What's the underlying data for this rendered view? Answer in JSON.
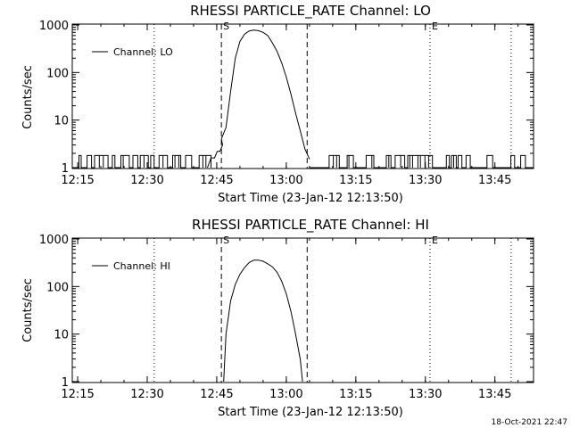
{
  "footer_date": "18-Oct-2021 22:47",
  "chart_data": [
    {
      "type": "line",
      "title": "RHESSI PARTICLE_RATE Channel: LO",
      "xlabel": "Start Time (23-Jan-12 12:13:50)",
      "ylabel": "Counts/sec",
      "yscale": "log",
      "xlim": [
        "12:13:50",
        "13:53:20"
      ],
      "ylim": [
        1,
        1000
      ],
      "x_ticks": [
        "12:15",
        "12:30",
        "12:45",
        "13:00",
        "13:15",
        "13:30",
        "13:45"
      ],
      "y_ticks": [
        "1",
        "10",
        "100",
        "1000"
      ],
      "legend": {
        "label": "Channel: LO",
        "position": "top-left"
      },
      "markers": [
        {
          "label": "S",
          "time": "12:46:00",
          "style": "dashed"
        },
        {
          "label": "",
          "time": "13:04:30",
          "style": "dashed"
        },
        {
          "label": "E",
          "time": "13:31:00",
          "style": "dotted"
        },
        {
          "label": "",
          "time": "12:31:30",
          "style": "dotted"
        },
        {
          "label": "",
          "time": "13:48:30",
          "style": "dotted"
        }
      ],
      "series": [
        {
          "name": "Channel: LO",
          "x": [
            "12:46:00",
            "12:47:00",
            "12:48:00",
            "12:49:00",
            "12:50:00",
            "12:51:00",
            "12:52:00",
            "12:53:00",
            "12:54:00",
            "12:55:00",
            "12:56:00",
            "12:57:00",
            "12:58:00",
            "12:59:00",
            "13:00:00",
            "13:01:00",
            "13:02:00",
            "13:03:00",
            "13:04:00",
            "13:05:00"
          ],
          "y": [
            4,
            7,
            40,
            200,
            450,
            640,
            750,
            780,
            760,
            700,
            600,
            420,
            280,
            160,
            80,
            35,
            14,
            6,
            2.5,
            1.5
          ]
        }
      ]
    },
    {
      "type": "line",
      "title": "RHESSI PARTICLE_RATE Channel: HI",
      "xlabel": "Start Time (23-Jan-12 12:13:50)",
      "ylabel": "Counts/sec",
      "yscale": "log",
      "xlim": [
        "12:13:50",
        "13:53:20"
      ],
      "ylim": [
        1,
        1000
      ],
      "x_ticks": [
        "12:15",
        "12:30",
        "12:45",
        "13:00",
        "13:15",
        "13:30",
        "13:45"
      ],
      "y_ticks": [
        "1",
        "10",
        "100",
        "1000"
      ],
      "legend": {
        "label": "Channel: HI",
        "position": "top-left"
      },
      "markers": [
        {
          "label": "S",
          "time": "12:46:00",
          "style": "dashed"
        },
        {
          "label": "",
          "time": "13:04:30",
          "style": "dashed"
        },
        {
          "label": "E",
          "time": "13:31:00",
          "style": "dotted"
        },
        {
          "label": "",
          "time": "12:31:30",
          "style": "dotted"
        },
        {
          "label": "",
          "time": "13:48:30",
          "style": "dotted"
        }
      ],
      "series": [
        {
          "name": "Channel: HI",
          "x": [
            "12:46:30",
            "12:47:00",
            "12:48:00",
            "12:49:00",
            "12:50:00",
            "12:51:00",
            "12:52:00",
            "12:53:00",
            "12:54:00",
            "12:55:00",
            "12:56:00",
            "12:57:00",
            "12:58:00",
            "12:59:00",
            "13:00:00",
            "13:01:00",
            "13:02:00",
            "13:03:00",
            "13:03:30"
          ],
          "y": [
            1,
            10,
            50,
            110,
            180,
            250,
            320,
            360,
            360,
            340,
            300,
            260,
            200,
            130,
            70,
            30,
            10,
            3,
            1
          ]
        }
      ]
    }
  ]
}
